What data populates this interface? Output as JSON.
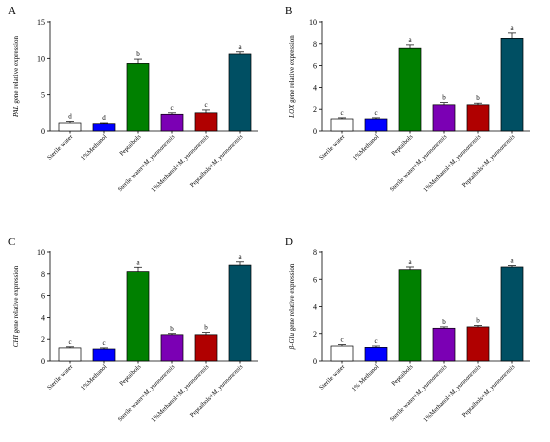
{
  "chart_data": [
    {
      "panel": "A",
      "type": "bar",
      "ylabel_italic": "PAL",
      "ylabel_rest": " gene relative expression",
      "ylim": [
        0,
        15
      ],
      "yticks": [
        "0",
        "5",
        "10",
        "15"
      ],
      "categories": [
        "Sterile water",
        "1%Methanol",
        "Peptaibols",
        "Sterile water+M. yunnanensis",
        "1%Methanol+M. yunnanensis",
        "Peptaibols+M. yunnanensis"
      ],
      "values": [
        1.1,
        1.0,
        9.3,
        2.3,
        2.5,
        10.6
      ],
      "errors": [
        0.2,
        0.1,
        0.6,
        0.2,
        0.4,
        0.3
      ],
      "letters": [
        "d",
        "d",
        "b",
        "c",
        "c",
        "a"
      ]
    },
    {
      "panel": "B",
      "type": "bar",
      "ylabel_italic": "LOX",
      "ylabel_rest": " gene relative expression",
      "ylim": [
        0,
        10
      ],
      "yticks": [
        "0",
        "2",
        "4",
        "6",
        "8",
        "10"
      ],
      "categories": [
        "Sterile water",
        "1%Methanol",
        "Peptaibols",
        "Sterile water+M. yunnanensis",
        "1%Methanol+M. yunnanensis",
        "Peptaibols+M. yunnanensis"
      ],
      "values": [
        1.1,
        1.1,
        7.6,
        2.4,
        2.4,
        8.5
      ],
      "errors": [
        0.1,
        0.1,
        0.3,
        0.2,
        0.15,
        0.5
      ],
      "letters": [
        "c",
        "c",
        "a",
        "b",
        "b",
        "a"
      ]
    },
    {
      "panel": "C",
      "type": "bar",
      "ylabel_italic": "CHI",
      "ylabel_rest": " gene relative expression",
      "ylim": [
        0,
        10
      ],
      "yticks": [
        "0",
        "2",
        "4",
        "6",
        "8",
        "10"
      ],
      "categories": [
        "Sterile water",
        "1%Methanol",
        "Peptaibols",
        "Sterile water+M. yunnanensis",
        "1%Methanol+M. yunnanensis",
        "Peptaibols+M. yunnanensis"
      ],
      "values": [
        1.2,
        1.1,
        8.2,
        2.4,
        2.4,
        8.8
      ],
      "errors": [
        0.1,
        0.1,
        0.4,
        0.1,
        0.2,
        0.3
      ],
      "letters": [
        "c",
        "c",
        "a",
        "b",
        "b",
        "a"
      ]
    },
    {
      "panel": "D",
      "type": "bar",
      "ylabel_italic": "β-Glu",
      "ylabel_rest": " gene relative expression",
      "ylim": [
        0,
        8
      ],
      "yticks": [
        "0",
        "2",
        "4",
        "6",
        "8"
      ],
      "categories": [
        "Sterile water",
        "1% Methanol",
        "Peptaibols",
        "Sterile water+M. yunnanensis",
        "1%Methanol+M. yunnanensis",
        "Peptaibols+M. yunnanensis"
      ],
      "values": [
        1.1,
        1.0,
        6.7,
        2.4,
        2.5,
        6.9
      ],
      "errors": [
        0.1,
        0.1,
        0.2,
        0.1,
        0.1,
        0.1
      ],
      "letters": [
        "c",
        "c",
        "a",
        "b",
        "b",
        "a"
      ]
    }
  ],
  "colors": [
    "#ffffff",
    "#0000ff",
    "#008000",
    "#7b00b4",
    "#b00000",
    "#004f63"
  ]
}
